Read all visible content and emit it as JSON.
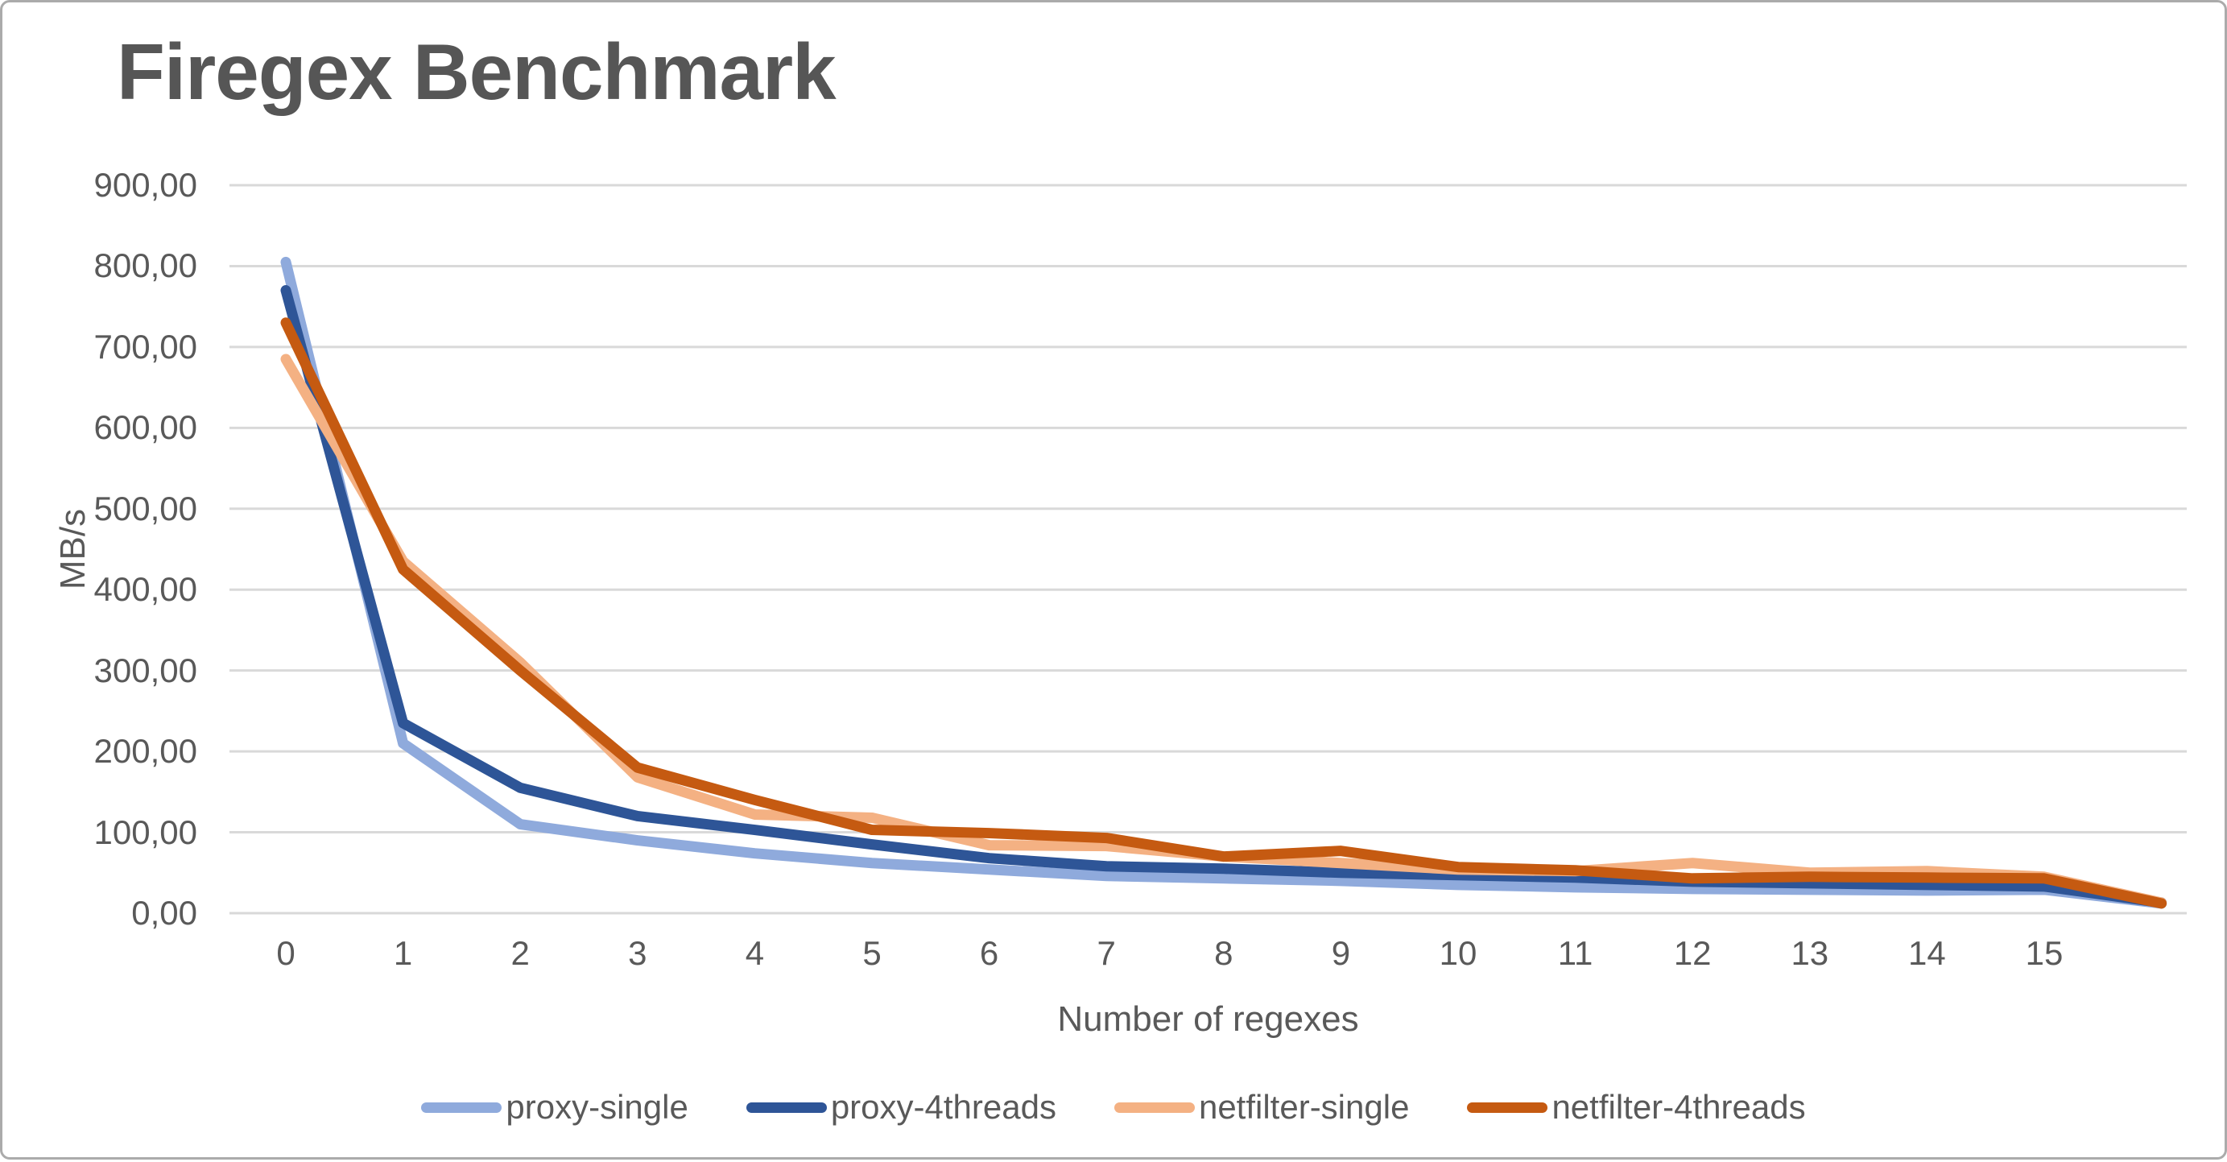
{
  "chart_data": {
    "type": "line",
    "title": "Firegex Benchmark",
    "xlabel": "Number of regexes",
    "ylabel": "MB/s",
    "x": [
      0,
      1,
      2,
      3,
      4,
      5,
      6,
      7,
      8,
      9,
      10,
      11,
      12,
      13,
      14,
      15,
      16
    ],
    "xtick_labels": [
      "0",
      "1",
      "2",
      "3",
      "4",
      "5",
      "6",
      "7",
      "8",
      "9",
      "10",
      "11",
      "12",
      "13",
      "14",
      "15"
    ],
    "ytick_labels": [
      "0,00",
      "100,00",
      "200,00",
      "300,00",
      "400,00",
      "500,00",
      "600,00",
      "700,00",
      "800,00",
      "900,00"
    ],
    "ylim": [
      0,
      900
    ],
    "grid": true,
    "legend_position": "bottom",
    "series": [
      {
        "name": "proxy-single",
        "color": "#8FAADC",
        "values": [
          805,
          210,
          110,
          90,
          74,
          62,
          54,
          46,
          43,
          40,
          35,
          32,
          30,
          29,
          28,
          29,
          12
        ]
      },
      {
        "name": "proxy-4threads",
        "color": "#2E5597",
        "values": [
          770,
          235,
          155,
          120,
          103,
          85,
          68,
          58,
          55,
          50,
          47,
          44,
          39,
          37,
          35,
          33,
          13
        ]
      },
      {
        "name": "netfilter-single",
        "color": "#F4B183",
        "values": [
          685,
          435,
          310,
          168,
          122,
          118,
          84,
          83,
          70,
          62,
          54,
          52,
          62,
          50,
          52,
          45,
          13
        ]
      },
      {
        "name": "netfilter-4threads",
        "color": "#C55A11",
        "values": [
          730,
          425,
          300,
          180,
          140,
          103,
          99,
          93,
          70,
          77,
          57,
          53,
          43,
          45,
          44,
          43,
          12
        ]
      }
    ]
  },
  "colors": {
    "background": "#FFFFFF",
    "border": "#ABABAB",
    "gridline": "#D9D9D9",
    "text": "#595959",
    "title": "#565656"
  }
}
